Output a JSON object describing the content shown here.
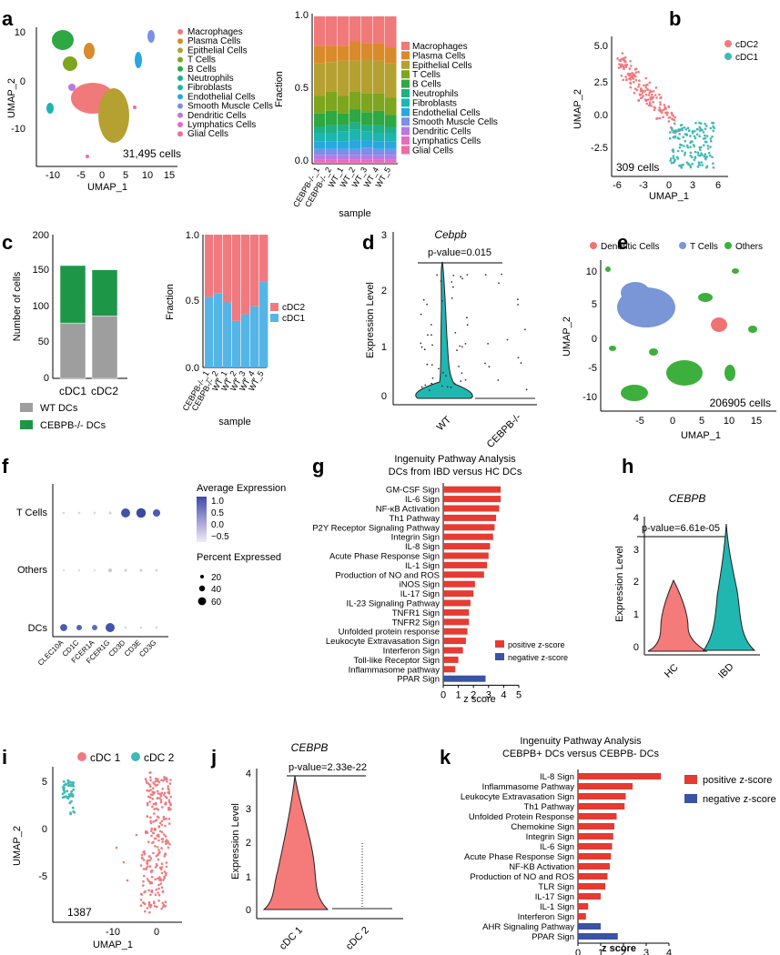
{
  "colors": {
    "cell_types": [
      "#F0797A",
      "#D98A2B",
      "#B5A032",
      "#7DA51E",
      "#2DA843",
      "#1FB086",
      "#1DB5B0",
      "#28A8DF",
      "#7B8FE8",
      "#B87AE0",
      "#E46DC4",
      "#F06CA1"
    ],
    "cDC2": "#F07A7F",
    "cDC1": "#3EB9B5",
    "bar_cDC1": "#55B5E6",
    "wt": "#9E9E9E",
    "ko": "#1D9747",
    "dc_pink": "#EF7373",
    "tcell_blue": "#7A96D6",
    "others_green": "#3DAF3C",
    "pos": "#E53B32",
    "neg": "#3B53A4",
    "hc": "#F57A7A",
    "ibd": "#20B7B1"
  },
  "panels": {
    "a": {
      "letter": "a",
      "umap": {
        "xlabel": "UMAP_1",
        "ylabel": "UMAP_2",
        "cell_count": "31,495 cells",
        "xticks": [
          "-10",
          "-5",
          "0",
          "5",
          "10",
          "15"
        ],
        "yticks": [
          "10",
          "0",
          "-10"
        ],
        "legend": [
          "Macrophages",
          "Plasma Cells",
          "Epithelial Cells",
          "T Cells",
          "B Cells",
          "Neutrophils",
          "Fibroblasts",
          "Endothelial Cells",
          "Smooth Muscle Cells",
          "Dendritic Cells",
          "Lymphatics Cells",
          "Glial Cells"
        ]
      },
      "bar": {
        "ylabel": "Fraction",
        "xlabel": "sample",
        "yticks": [
          "1.0",
          "0.5",
          "0.0"
        ],
        "samples": [
          "CEBPB-/-_1",
          "CEBPB-/-_2",
          "WT_1",
          "WT_2",
          "WT_3",
          "WT_4",
          "WT_5"
        ],
        "legend": [
          "Macrophages",
          "Plasma Cells",
          "Epithelial Cells",
          "T Cells",
          "B Cells",
          "Neutrophils",
          "Fibroblasts",
          "Endothelial Cells",
          "Smooth Muscle Cells",
          "Dendritic Cells",
          "Lymphatics Cells",
          "Glial Cells"
        ]
      }
    },
    "b": {
      "letter": "b",
      "xlabel": "UMAP_1",
      "ylabel": "UMAP_2",
      "cell_count": "309 cells",
      "legend": [
        "cDC2",
        "cDC1"
      ],
      "xticks": [
        "-6",
        "-3",
        "0",
        "3",
        "6"
      ],
      "yticks": [
        "5.0",
        "2.5",
        "0.0",
        "-2.5"
      ]
    },
    "c": {
      "letter": "c",
      "stack": {
        "ylabel": "Number of cells",
        "yticks": [
          "200",
          "150",
          "100",
          "50",
          "0"
        ],
        "categories": [
          "cDC1",
          "cDC2"
        ],
        "legend": [
          "WT DCs",
          "CEBPB-/- DCs"
        ]
      },
      "frac": {
        "ylabel": "Fraction",
        "xlabel": "sample",
        "yticks": [
          "1.0",
          "0.5",
          "0.0"
        ],
        "samples": [
          "CEBPB-/-_1",
          "CEBPB-/-_2",
          "WT_1",
          "WT_2",
          "WT_3",
          "WT_4",
          "WT_5"
        ],
        "legend": [
          "cDC2",
          "cDC1"
        ]
      }
    },
    "d": {
      "letter": "d",
      "title": "Cebpb",
      "pvalue": "p-value=0.015",
      "ylabel": "Expression Level",
      "yticks": [
        "3",
        "2",
        "1",
        "0"
      ],
      "xticks": [
        "WT",
        "CEBPB-/-"
      ]
    },
    "e": {
      "letter": "e",
      "legend": [
        "Dendritic Cells",
        "T Cells",
        "Others"
      ],
      "xlabel": "UMAP_1",
      "ylabel": "UMAP_2",
      "cell_count": "206905 cells",
      "xticks": [
        "-5",
        "0",
        "5",
        "10",
        "15"
      ],
      "yticks": [
        "10",
        "5",
        "0",
        "-5",
        "-10"
      ]
    },
    "f": {
      "letter": "f",
      "rows": [
        "T Cells",
        "Others",
        "DCs"
      ],
      "genes": [
        "CLEC10A",
        "CD1C",
        "FCER1A",
        "FCER1G",
        "CD3D",
        "CD3E",
        "CD3G"
      ],
      "avg_title": "Average Expression",
      "avg_ticks": [
        "1.0",
        "0.5",
        "0.0",
        "−0.5"
      ],
      "pct_title": "Percent Expressed",
      "pct_ticks": [
        "20",
        "40",
        "60"
      ]
    },
    "g": {
      "letter": "g",
      "title": "Ingenuity Pathway Analysis",
      "subtitle": "DCs from IBD versus HC DCs",
      "xlabel": "z score",
      "xticks": [
        "0",
        "1",
        "2",
        "3",
        "4",
        "5"
      ],
      "legend": [
        "positive z-score",
        "negative z-score"
      ]
    },
    "h": {
      "letter": "h",
      "title": "CEBPB",
      "pvalue": "p-value=6.61e-05",
      "ylabel": "Expression Level",
      "yticks": [
        "4",
        "3",
        "2",
        "1",
        "0"
      ],
      "xticks": [
        "HC",
        "IBD"
      ]
    },
    "i": {
      "letter": "i",
      "legend": [
        "cDC 1",
        "cDC 2"
      ],
      "xlabel": "UMAP_1",
      "ylabel": "UMAP_2",
      "cell_count": "1387",
      "xticks": [
        "-10",
        "0"
      ],
      "yticks": [
        "5",
        "0",
        "-5"
      ]
    },
    "j": {
      "letter": "j",
      "title": "CEBPB",
      "pvalue": "p-value=2.33e-22",
      "ylabel": "Expression Level",
      "yticks": [
        "4",
        "3",
        "2",
        "1",
        "0"
      ],
      "xticks": [
        "cDC 1",
        "cDC 2"
      ]
    },
    "k": {
      "letter": "k",
      "title": "Ingenuity Pathway Analysis",
      "subtitle": "CEBPB+ DCs versus CEBPB- DCs",
      "xlabel": "z score",
      "xticks": [
        "0",
        "1",
        "2",
        "3",
        "4"
      ],
      "legend": [
        "positive z-score",
        "negative z-score"
      ]
    }
  },
  "chart_data": [
    {
      "type": "bar",
      "panel": "a-bar",
      "title": "",
      "xlabel": "sample",
      "ylabel": "Fraction",
      "ylim": [
        0,
        1
      ],
      "categories": [
        "CEBPB-/-_1",
        "CEBPB-/-_2",
        "WT_1",
        "WT_2",
        "WT_3",
        "WT_4",
        "WT_5"
      ],
      "series": [
        {
          "name": "Glial Cells",
          "values": [
            0.01,
            0.01,
            0.01,
            0.01,
            0.01,
            0.01,
            0.01
          ]
        },
        {
          "name": "Lymphatics Cells",
          "values": [
            0.02,
            0.02,
            0.02,
            0.02,
            0.02,
            0.02,
            0.02
          ]
        },
        {
          "name": "Dendritic Cells",
          "values": [
            0.03,
            0.03,
            0.03,
            0.03,
            0.03,
            0.03,
            0.03
          ]
        },
        {
          "name": "Smooth Muscle Cells",
          "values": [
            0.04,
            0.04,
            0.04,
            0.04,
            0.05,
            0.04,
            0.04
          ]
        },
        {
          "name": "Endothelial Cells",
          "values": [
            0.05,
            0.05,
            0.05,
            0.06,
            0.05,
            0.05,
            0.05
          ]
        },
        {
          "name": "Fibroblasts",
          "values": [
            0.06,
            0.06,
            0.07,
            0.07,
            0.06,
            0.06,
            0.06
          ]
        },
        {
          "name": "Neutrophils",
          "values": [
            0.04,
            0.05,
            0.04,
            0.05,
            0.04,
            0.05,
            0.04
          ]
        },
        {
          "name": "B Cells",
          "values": [
            0.09,
            0.1,
            0.08,
            0.09,
            0.09,
            0.1,
            0.08
          ]
        },
        {
          "name": "T Cells",
          "values": [
            0.12,
            0.13,
            0.12,
            0.12,
            0.13,
            0.12,
            0.12
          ]
        },
        {
          "name": "Epithelial Cells",
          "values": [
            0.22,
            0.2,
            0.24,
            0.21,
            0.23,
            0.22,
            0.23
          ]
        },
        {
          "name": "Plasma Cells",
          "values": [
            0.12,
            0.11,
            0.1,
            0.13,
            0.11,
            0.12,
            0.11
          ]
        },
        {
          "name": "Macrophages",
          "values": [
            0.2,
            0.2,
            0.2,
            0.17,
            0.18,
            0.18,
            0.21
          ]
        }
      ]
    },
    {
      "type": "bar",
      "panel": "c-stack",
      "ylabel": "Number of cells",
      "ylim": [
        0,
        200
      ],
      "categories": [
        "cDC1",
        "cDC2"
      ],
      "series": [
        {
          "name": "WT DCs",
          "values": [
            77,
            87
          ]
        },
        {
          "name": "CEBPB-/- DCs",
          "values": [
            80,
            64
          ]
        }
      ]
    },
    {
      "type": "bar",
      "panel": "c-frac",
      "xlabel": "sample",
      "ylabel": "Fraction",
      "ylim": [
        0,
        1
      ],
      "categories": [
        "CEBPB-/-_1",
        "CEBPB-/-_2",
        "WT_1",
        "WT_2",
        "WT_3",
        "WT_4",
        "WT_5"
      ],
      "series": [
        {
          "name": "cDC1",
          "values": [
            0.53,
            0.56,
            0.49,
            0.35,
            0.4,
            0.46,
            0.65
          ]
        },
        {
          "name": "cDC2",
          "values": [
            0.47,
            0.44,
            0.51,
            0.65,
            0.6,
            0.54,
            0.35
          ]
        }
      ]
    },
    {
      "type": "bar",
      "panel": "g",
      "orientation": "horizontal",
      "title": "Ingenuity Pathway Analysis",
      "subtitle": "DCs from IBD versus HC DCs",
      "xlabel": "z score",
      "xlim": [
        0,
        5
      ],
      "categories": [
        "GM-CSF Sign",
        "IL-6 Sign",
        "NF-κB Activation",
        "Th1 Pathway",
        "P2Y Receptor Signaling Pathway",
        "Integrin Sign",
        "IL-8 Sign",
        "Acute Phase Response Sign",
        "IL-1 Sign",
        "Production of NO and ROS",
        "iNOS Sign",
        "IL-17 Sign",
        "IL-23 Signaling Pathway",
        "TNFR1 Sign",
        "TNFR2 Sign",
        "Unfolded protein response",
        "Leukocyte Extravasation Sign",
        "Interferon Sign",
        "Toll-like Receptor Sign",
        "Inflammasome pathway",
        "PPAR Sign"
      ],
      "values": [
        3.8,
        3.8,
        3.7,
        3.5,
        3.4,
        3.3,
        3.1,
        3.0,
        2.9,
        2.7,
        2.1,
        2.0,
        1.8,
        1.7,
        1.7,
        1.6,
        1.5,
        1.3,
        1.0,
        0.8,
        2.8
      ],
      "sign": [
        "positive",
        "positive",
        "positive",
        "positive",
        "positive",
        "positive",
        "positive",
        "positive",
        "positive",
        "positive",
        "positive",
        "positive",
        "positive",
        "positive",
        "positive",
        "positive",
        "positive",
        "positive",
        "positive",
        "positive",
        "negative"
      ]
    },
    {
      "type": "bar",
      "panel": "k",
      "orientation": "horizontal",
      "title": "Ingenuity Pathway Analysis",
      "subtitle": "CEBPB+ DCs versus CEBPB- DCs",
      "xlabel": "z score",
      "xlim": [
        0,
        4
      ],
      "categories": [
        "IL-8 Sign",
        "Inflammasome Pathway",
        "Leukocyte Extravasation Sign",
        "Th1 Pathway",
        "Unfolded Protein Response",
        "Chemokine Sign",
        "Integrin Sign",
        "IL-6 Sign",
        "Acute Phase Response Sign",
        "NF-KB Activation",
        "Production of NO and ROS",
        "TLR Sign",
        "IL-17 Sign",
        "IL-1 Sign",
        "Interferon Sign",
        "AHR Signaling Pathway",
        "PPAR Sign"
      ],
      "values": [
        3.65,
        2.4,
        2.1,
        2.05,
        1.7,
        1.6,
        1.55,
        1.5,
        1.45,
        1.4,
        1.3,
        1.2,
        1.0,
        0.45,
        0.35,
        1.0,
        1.75
      ],
      "sign": [
        "positive",
        "positive",
        "positive",
        "positive",
        "positive",
        "positive",
        "positive",
        "positive",
        "positive",
        "positive",
        "positive",
        "positive",
        "positive",
        "positive",
        "positive",
        "negative",
        "negative"
      ]
    },
    {
      "type": "scatter",
      "panel": "f",
      "title": "dot plot",
      "rows": [
        "T Cells",
        "Others",
        "DCs"
      ],
      "genes": [
        "CLEC10A",
        "CD1C",
        "FCER1A",
        "FCER1G",
        "CD3D",
        "CD3E",
        "CD3G"
      ],
      "avg_expression": [
        [
          -0.6,
          -0.6,
          -0.6,
          -0.5,
          1.0,
          1.1,
          0.9
        ],
        [
          -0.6,
          -0.6,
          -0.6,
          -0.4,
          -0.5,
          -0.5,
          -0.5
        ],
        [
          0.9,
          0.8,
          0.7,
          1.0,
          -0.6,
          -0.6,
          -0.6
        ]
      ],
      "percent_expressed": [
        [
          2,
          2,
          2,
          3,
          60,
          68,
          38
        ],
        [
          1,
          1,
          1,
          6,
          3,
          3,
          2
        ],
        [
          35,
          18,
          18,
          62,
          2,
          2,
          2
        ]
      ]
    }
  ]
}
